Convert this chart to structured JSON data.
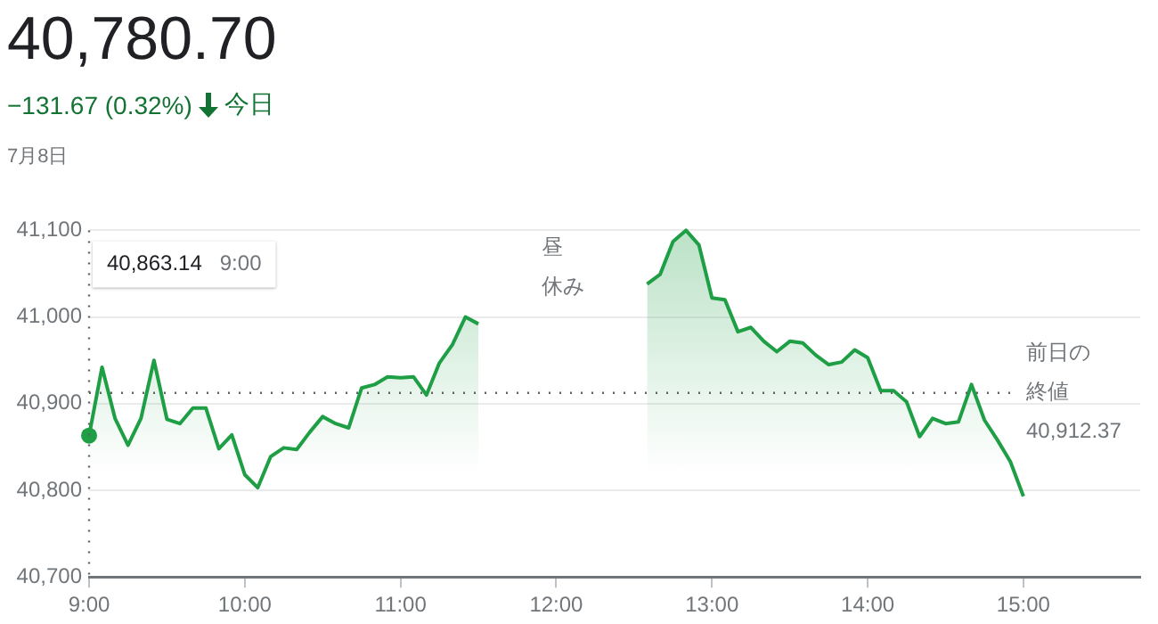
{
  "chart_data": {
    "type": "area",
    "title": "40,780.70",
    "subtitle": "−131.67 (0.32%) 今日",
    "annotations": [
      "7月8日",
      "昼",
      "休み",
      "40,863.14  9:00",
      "40,912.37"
    ],
    "x": [
      9,
      9.0833,
      9.1667,
      9.25,
      9.3333,
      9.4167,
      9.5,
      9.5833,
      9.6667,
      9.75,
      9.8333,
      9.9167,
      10,
      10.0833,
      10.1667,
      10.25,
      10.3333,
      10.4167,
      10.5,
      10.5833,
      10.6667,
      10.75,
      10.8333,
      10.9167,
      11,
      11.0833,
      11.1667,
      11.25,
      11.3333,
      11.4167,
      11.5,
      12,
      12.5833,
      12.6667,
      12.75,
      12.8333,
      12.9167,
      13,
      13.0833,
      13.1667,
      13.25,
      13.3333,
      13.4167,
      13.5,
      13.5833,
      13.6667,
      13.75,
      13.8333,
      13.9167,
      14,
      14.0833,
      14.1667,
      14.25,
      14.3333,
      14.4167,
      14.5,
      14.5833,
      14.6667,
      14.75,
      14.8333,
      14.9167,
      15
    ],
    "series": [
      {
        "color": "#1e9e45",
        "values": [
          40863.14,
          40942,
          40883,
          40852,
          40883,
          40950,
          40882,
          40877,
          40895,
          40895,
          40848,
          40864,
          40818,
          40803,
          40839,
          40849,
          40847,
          40867,
          40885,
          40877,
          40872,
          40918,
          40922,
          40931,
          40930,
          40931,
          40910,
          40947,
          40968,
          41000,
          40992,
          null,
          41038,
          41049,
          41087,
          41100,
          41083,
          41022,
          41020,
          40983,
          40988,
          40972,
          40960,
          40972,
          40970,
          40956,
          40945,
          40948,
          40962,
          40953,
          40915,
          40915,
          40902,
          40862,
          40883,
          40877,
          40879,
          40922,
          40881,
          40858,
          40833,
          40793
        ]
      }
    ],
    "xlim": [
      9,
      15.75
    ],
    "xticks": [
      {
        "value": 9,
        "label": "9:00"
      },
      {
        "value": 10,
        "label": "10:00"
      },
      {
        "value": 11,
        "label": "11:00"
      },
      {
        "value": 12,
        "label": "12:00"
      },
      {
        "value": 13,
        "label": "13:00"
      },
      {
        "value": 14,
        "label": "14:00"
      },
      {
        "value": 15,
        "label": "15:00"
      }
    ],
    "ylim": [
      40700,
      41100
    ],
    "yticks": [
      {
        "value": 40700,
        "label": "40,700"
      },
      {
        "value": 40800,
        "label": "40,800"
      },
      {
        "value": 40900,
        "label": "40,900"
      },
      {
        "value": 41000,
        "label": "41,000"
      },
      {
        "value": 41100,
        "label": "41,100"
      }
    ],
    "ref_lines": [
      {
        "axis": "y",
        "value": 40912.37,
        "label": "前日の終値",
        "line_style": "dotted"
      },
      {
        "axis": "x",
        "value": 9,
        "line_style": "dotted"
      }
    ],
    "grid": "y",
    "legend": false,
    "marker": "none",
    "line_style": "solid"
  }
}
